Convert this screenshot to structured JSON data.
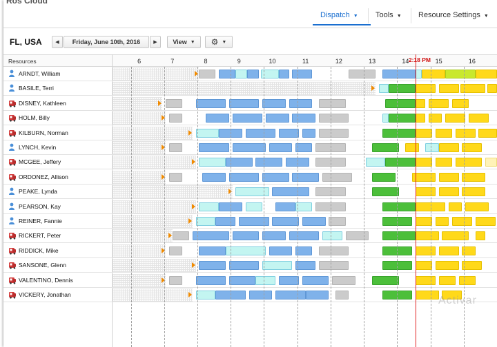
{
  "app": {
    "title": "Ros Cloud"
  },
  "nav": {
    "dispatch": "Dispatch",
    "tools": "Tools",
    "resource_settings": "Resource Settings"
  },
  "toolbar": {
    "location": "FL, USA",
    "prev": "◀",
    "date": "Friday, June 10th, 2016",
    "next": "▶",
    "view": "View"
  },
  "grid": {
    "resources_header": "Resources",
    "now_time": "2:18 PM",
    "hours": [
      "6",
      "7",
      "8",
      "9",
      "10",
      "11",
      "12",
      "13",
      "14",
      "15",
      "16"
    ],
    "hour_start": 5.2,
    "hour_end": 16.75,
    "now_hour": 14.3
  },
  "resources": [
    {
      "name": "ARNDT, William",
      "icon": "person-icon",
      "ph": 7.8,
      "segs": [
        [
          "gray",
          7.8,
          8.3
        ],
        [
          "blue",
          8.4,
          8.9
        ],
        [
          "cyan",
          8.9,
          9.25
        ],
        [
          "blue",
          9.25,
          9.6
        ],
        [
          "cyan",
          9.65,
          10.2
        ],
        [
          "blue",
          10.2,
          10.5
        ],
        [
          "blue",
          10.6,
          11.2
        ],
        [
          "gray",
          12.3,
          13.1
        ],
        [
          "blue",
          13.3,
          14.3
        ],
        [
          "cyan",
          14.3,
          14.5
        ],
        [
          "yellow",
          14.5,
          15.2
        ],
        [
          "lime",
          15.2,
          16.1
        ],
        [
          "yellow",
          16.1,
          16.75
        ]
      ]
    },
    {
      "name": "BASILE, Terri",
      "icon": "person-icon",
      "ph": 13.1,
      "segs": [
        [
          "cyan",
          13.2,
          13.5
        ],
        [
          "green",
          13.5,
          14.3
        ],
        [
          "yellow",
          14.3,
          14.9
        ],
        [
          "yellow",
          15.0,
          15.6
        ],
        [
          "yellow",
          15.65,
          16.4
        ],
        [
          "yellow",
          16.45,
          16.75
        ]
      ]
    },
    {
      "name": "DISNEY, Kathleen",
      "icon": "truck-icon",
      "ph": 6.7,
      "segs": [
        [
          "gray",
          6.8,
          7.3
        ],
        [
          "blue",
          7.7,
          8.6
        ],
        [
          "blue",
          8.7,
          9.6
        ],
        [
          "blue",
          9.7,
          10.4
        ],
        [
          "blue",
          10.5,
          11.2
        ],
        [
          "gray",
          11.4,
          12.2
        ],
        [
          "green",
          13.4,
          14.3
        ],
        [
          "yellow",
          14.3,
          14.6
        ],
        [
          "yellow",
          14.7,
          15.3
        ],
        [
          "yellow",
          15.4,
          15.9
        ]
      ]
    },
    {
      "name": "HOLM, Billy",
      "icon": "truck-icon",
      "ph": 6.8,
      "segs": [
        [
          "gray",
          6.9,
          7.3
        ],
        [
          "blue",
          8.0,
          8.7
        ],
        [
          "blue",
          8.8,
          9.7
        ],
        [
          "blue",
          9.8,
          10.5
        ],
        [
          "blue",
          10.6,
          11.3
        ],
        [
          "gray",
          11.4,
          12.3
        ],
        [
          "cyan",
          13.3,
          13.5
        ],
        [
          "green",
          13.5,
          14.3
        ],
        [
          "yellow",
          14.3,
          14.6
        ],
        [
          "yellow",
          14.7,
          15.1
        ],
        [
          "yellow",
          15.2,
          15.8
        ],
        [
          "yellow",
          15.9,
          16.5
        ]
      ]
    },
    {
      "name": "KILBURN, Norman",
      "icon": "truck-icon",
      "ph": 7.6,
      "segs": [
        [
          "cyan",
          7.7,
          8.4
        ],
        [
          "blue",
          8.4,
          9.1
        ],
        [
          "blue",
          9.2,
          10.1
        ],
        [
          "blue",
          10.2,
          10.8
        ],
        [
          "blue",
          10.9,
          11.3
        ],
        [
          "gray",
          11.4,
          12.3
        ],
        [
          "green",
          13.3,
          14.3
        ],
        [
          "yellow",
          14.3,
          14.8
        ],
        [
          "yellow",
          14.9,
          15.4
        ],
        [
          "yellow",
          15.5,
          16.1
        ],
        [
          "yellow",
          16.2,
          16.75
        ]
      ]
    },
    {
      "name": "LYNCH, Kevin",
      "icon": "person-icon",
      "ph": 6.8,
      "segs": [
        [
          "gray",
          6.9,
          7.3
        ],
        [
          "blue",
          7.8,
          8.7
        ],
        [
          "blue",
          8.8,
          9.8
        ],
        [
          "blue",
          9.9,
          10.6
        ],
        [
          "blue",
          10.7,
          11.2
        ],
        [
          "gray",
          11.3,
          12.2
        ],
        [
          "green",
          13.0,
          13.8
        ],
        [
          "yellow",
          14.0,
          14.4
        ],
        [
          "cyan",
          14.6,
          15.0
        ],
        [
          "yellow",
          15.0,
          15.6
        ],
        [
          "yellow",
          15.7,
          16.3
        ]
      ]
    },
    {
      "name": "MCGEE, Jeffery",
      "icon": "truck-icon",
      "ph": 7.7,
      "segs": [
        [
          "cyan",
          7.8,
          8.6
        ],
        [
          "blue",
          8.6,
          9.4
        ],
        [
          "blue",
          9.5,
          10.3
        ],
        [
          "blue",
          10.4,
          11.1
        ],
        [
          "gray",
          11.3,
          12.2
        ],
        [
          "cyan",
          12.8,
          13.4
        ],
        [
          "green",
          13.4,
          14.3
        ],
        [
          "yellow",
          14.3,
          14.8
        ],
        [
          "yellow",
          14.9,
          15.4
        ],
        [
          "yellow",
          15.5,
          16.3
        ],
        [
          "pale",
          16.4,
          16.75
        ]
      ]
    },
    {
      "name": "ORDONEZ, Allison",
      "icon": "truck-icon",
      "ph": 6.8,
      "segs": [
        [
          "gray",
          6.9,
          7.3
        ],
        [
          "blue",
          7.9,
          8.6
        ],
        [
          "blue",
          8.7,
          9.6
        ],
        [
          "blue",
          9.7,
          10.5
        ],
        [
          "blue",
          10.6,
          11.4
        ],
        [
          "gray",
          11.5,
          12.4
        ],
        [
          "green",
          13.0,
          13.7
        ],
        [
          "yellow",
          14.2,
          14.9
        ],
        [
          "yellow",
          15.0,
          15.6
        ],
        [
          "yellow",
          15.7,
          16.4
        ]
      ]
    },
    {
      "name": "PEAKE, Lynda",
      "icon": "person-icon",
      "ph": 8.8,
      "segs": [
        [
          "cyan",
          8.9,
          9.9
        ],
        [
          "blue",
          10.0,
          11.1
        ],
        [
          "gray",
          11.3,
          12.2
        ],
        [
          "green",
          13.0,
          13.8
        ],
        [
          "yellow",
          14.3,
          14.9
        ],
        [
          "yellow",
          15.0,
          15.6
        ],
        [
          "yellow",
          15.7,
          16.4
        ]
      ]
    },
    {
      "name": "PEARSON, Kay",
      "icon": "person-icon",
      "ph": 7.7,
      "segs": [
        [
          "cyan",
          7.8,
          8.4
        ],
        [
          "blue",
          8.4,
          9.1
        ],
        [
          "cyan",
          9.2,
          9.7
        ],
        [
          "blue",
          10.1,
          10.7
        ],
        [
          "cyan",
          10.7,
          11.2
        ],
        [
          "gray",
          11.3,
          12.2
        ],
        [
          "green",
          13.3,
          14.3
        ],
        [
          "yellow",
          14.3,
          15.2
        ],
        [
          "yellow",
          15.3,
          15.7
        ],
        [
          "yellow",
          15.8,
          16.5
        ]
      ]
    },
    {
      "name": "REINER, Fannie",
      "icon": "person-icon",
      "ph": 7.6,
      "segs": [
        [
          "cyan",
          7.7,
          8.3
        ],
        [
          "blue",
          8.3,
          8.9
        ],
        [
          "blue",
          9.0,
          9.9
        ],
        [
          "blue",
          10.0,
          10.8
        ],
        [
          "blue",
          10.9,
          11.6
        ],
        [
          "gray",
          11.7,
          12.2
        ],
        [
          "green",
          13.3,
          14.2
        ],
        [
          "yellow",
          14.3,
          14.8
        ],
        [
          "yellow",
          14.9,
          15.3
        ],
        [
          "yellow",
          15.4,
          16.0
        ],
        [
          "yellow",
          16.1,
          16.7
        ]
      ]
    },
    {
      "name": "RICKERT, Peter",
      "icon": "truck-icon",
      "ph": 7.0,
      "segs": [
        [
          "gray",
          7.0,
          7.5
        ],
        [
          "blue",
          7.6,
          8.7
        ],
        [
          "blue",
          8.8,
          9.6
        ],
        [
          "blue",
          9.7,
          10.4
        ],
        [
          "blue",
          10.5,
          11.4
        ],
        [
          "cyan",
          11.5,
          12.1
        ],
        [
          "gray",
          12.2,
          12.9
        ],
        [
          "green",
          13.3,
          14.3
        ],
        [
          "yellow",
          14.3,
          15.0
        ],
        [
          "yellow",
          15.1,
          15.9
        ],
        [
          "yellow",
          16.1,
          16.4
        ]
      ]
    },
    {
      "name": "RIDDICK, Mike",
      "icon": "truck-icon",
      "ph": 6.8,
      "segs": [
        [
          "gray",
          6.9,
          7.3
        ],
        [
          "blue",
          7.8,
          8.6
        ],
        [
          "cyan",
          8.6,
          9.8
        ],
        [
          "blue",
          9.9,
          10.6
        ],
        [
          "blue",
          10.7,
          11.2
        ],
        [
          "gray",
          11.4,
          12.3
        ],
        [
          "green",
          13.3,
          14.2
        ],
        [
          "yellow",
          14.3,
          14.9
        ],
        [
          "yellow",
          15.0,
          15.6
        ],
        [
          "yellow",
          15.7,
          16.1
        ]
      ]
    },
    {
      "name": "SANSONE, Glenn",
      "icon": "truck-icon",
      "ph": 7.7,
      "segs": [
        [
          "blue",
          7.8,
          8.6
        ],
        [
          "blue",
          8.7,
          9.6
        ],
        [
          "cyan",
          9.7,
          10.6
        ],
        [
          "blue",
          10.7,
          11.3
        ],
        [
          "gray",
          11.4,
          12.3
        ],
        [
          "green",
          13.3,
          14.2
        ],
        [
          "yellow",
          14.3,
          14.8
        ],
        [
          "yellow",
          14.9,
          15.6
        ],
        [
          "yellow",
          15.7,
          16.3
        ]
      ]
    },
    {
      "name": "VALENTINO, Dennis",
      "icon": "truck-icon",
      "ph": 6.8,
      "segs": [
        [
          "gray",
          6.9,
          7.3
        ],
        [
          "blue",
          7.7,
          8.6
        ],
        [
          "blue",
          8.7,
          9.5
        ],
        [
          "cyan",
          9.5,
          10.1
        ],
        [
          "blue",
          10.2,
          10.8
        ],
        [
          "blue",
          10.9,
          11.7
        ],
        [
          "gray",
          11.8,
          12.5
        ],
        [
          "green",
          13.0,
          13.8
        ],
        [
          "yellow",
          14.3,
          14.9
        ],
        [
          "yellow",
          15.0,
          15.5
        ],
        [
          "yellow",
          15.6,
          16.1
        ]
      ]
    },
    {
      "name": "VICKERY, Jonathan",
      "icon": "truck-icon",
      "ph": 7.6,
      "segs": [
        [
          "cyan",
          7.7,
          8.3
        ],
        [
          "blue",
          8.3,
          9.2
        ],
        [
          "blue",
          9.3,
          10.0
        ],
        [
          "blue",
          10.1,
          11.0
        ],
        [
          "blue",
          11.0,
          11.7
        ],
        [
          "gray",
          11.9,
          12.3
        ],
        [
          "green",
          13.3,
          14.2
        ],
        [
          "yellow",
          14.3,
          15.0
        ],
        [
          "yellow",
          15.1,
          15.7
        ]
      ]
    }
  ],
  "watermark": "Activar"
}
